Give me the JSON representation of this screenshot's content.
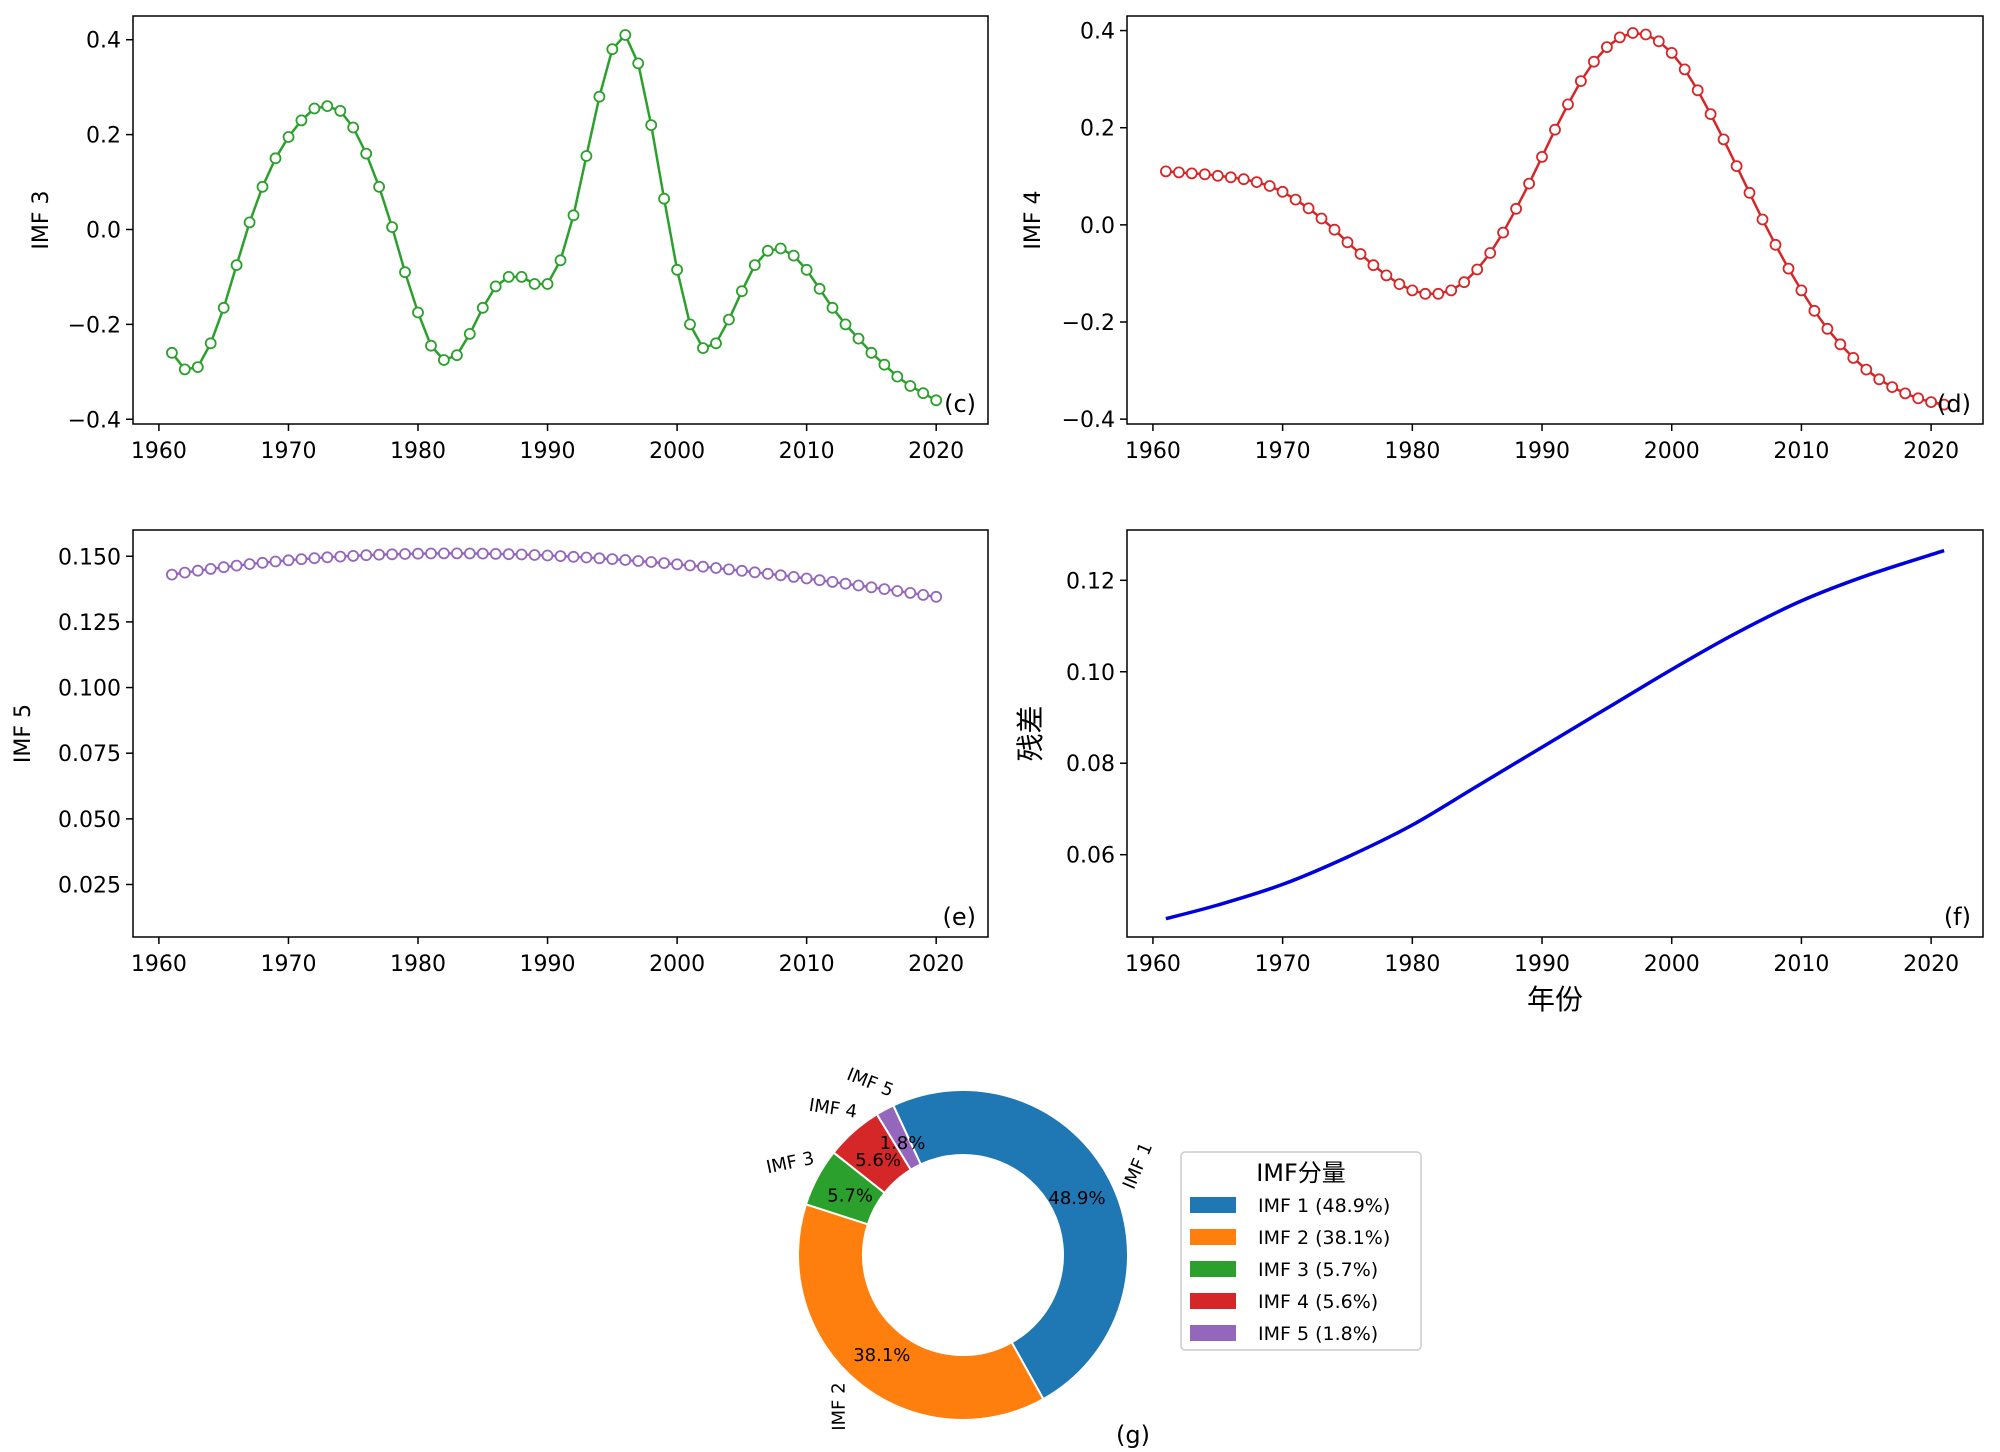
{
  "chart_data": [
    {
      "type": "line",
      "panel_label": "(c)",
      "ylabel": "IMF 3",
      "xlim": [
        1958,
        2024
      ],
      "ylim": [
        -0.41,
        0.45
      ],
      "xticks": [
        1960,
        1970,
        1980,
        1990,
        2000,
        2010,
        2020
      ],
      "xtick_labels": [
        "1960",
        "1970",
        "1980",
        "1990",
        "2000",
        "2010",
        "2020"
      ],
      "yticks": [
        -0.4,
        -0.2,
        0.0,
        0.2,
        0.4
      ],
      "ytick_labels": [
        "−0.4",
        "−0.2",
        "0.0",
        "0.2",
        "0.4"
      ],
      "color": "#2ca02c",
      "markers": true,
      "x_start": 1961,
      "y": [
        -0.26,
        -0.295,
        -0.29,
        -0.24,
        -0.165,
        -0.075,
        0.015,
        0.09,
        0.15,
        0.195,
        0.23,
        0.255,
        0.26,
        0.25,
        0.215,
        0.16,
        0.09,
        0.005,
        -0.09,
        -0.175,
        -0.245,
        -0.275,
        -0.265,
        -0.22,
        -0.165,
        -0.12,
        -0.1,
        -0.1,
        -0.115,
        -0.115,
        -0.065,
        0.03,
        0.155,
        0.28,
        0.38,
        0.41,
        0.35,
        0.22,
        0.065,
        -0.085,
        -0.2,
        -0.25,
        -0.24,
        -0.19,
        -0.13,
        -0.075,
        -0.045,
        -0.04,
        -0.055,
        -0.085,
        -0.125,
        -0.165,
        -0.2,
        -0.23,
        -0.26,
        -0.285,
        -0.31,
        -0.33,
        -0.345,
        -0.36
      ]
    },
    {
      "type": "line",
      "panel_label": "(d)",
      "ylabel": "IMF 4",
      "xlim": [
        1958,
        2024
      ],
      "ylim": [
        -0.41,
        0.43
      ],
      "xticks": [
        1960,
        1970,
        1980,
        1990,
        2000,
        2010,
        2020
      ],
      "xtick_labels": [
        "1960",
        "1970",
        "1980",
        "1990",
        "2000",
        "2010",
        "2020"
      ],
      "yticks": [
        -0.4,
        -0.2,
        0.0,
        0.2,
        0.4
      ],
      "ytick_labels": [
        "−0.4",
        "−0.2",
        "0.0",
        "0.2",
        "0.4"
      ],
      "color": "#d62728",
      "markers": true,
      "x_start": 1961,
      "y": [
        0.11,
        0.108,
        0.106,
        0.104,
        0.101,
        0.098,
        0.094,
        0.088,
        0.08,
        0.068,
        0.052,
        0.034,
        0.013,
        -0.01,
        -0.036,
        -0.06,
        -0.083,
        -0.104,
        -0.122,
        -0.135,
        -0.142,
        -0.142,
        -0.135,
        -0.118,
        -0.092,
        -0.058,
        -0.016,
        0.033,
        0.085,
        0.14,
        0.196,
        0.248,
        0.296,
        0.336,
        0.366,
        0.386,
        0.395,
        0.392,
        0.378,
        0.354,
        0.32,
        0.277,
        0.228,
        0.176,
        0.121,
        0.066,
        0.011,
        -0.041,
        -0.09,
        -0.135,
        -0.177,
        -0.214,
        -0.246,
        -0.274,
        -0.298,
        -0.318,
        -0.334,
        -0.347,
        -0.357,
        -0.365,
        -0.37
      ]
    },
    {
      "type": "line",
      "panel_label": "(e)",
      "ylabel": "IMF 5",
      "xlim": [
        1958,
        2024
      ],
      "ylim": [
        0.005,
        0.16
      ],
      "xticks": [
        1960,
        1970,
        1980,
        1990,
        2000,
        2010,
        2020
      ],
      "xtick_labels": [
        "1960",
        "1970",
        "1980",
        "1990",
        "2000",
        "2010",
        "2020"
      ],
      "yticks": [
        0.025,
        0.05,
        0.075,
        0.1,
        0.125,
        0.15
      ],
      "ytick_labels": [
        "0.025",
        "0.050",
        "0.075",
        "0.100",
        "0.125",
        "0.150"
      ],
      "color": "#9467bd",
      "markers": true,
      "x_start": 1961,
      "x_end": 2020,
      "cubic": [
        0.143,
        0.000791,
        -2.13e-05,
        9.26e-08
      ]
    },
    {
      "type": "line",
      "panel_label": "(f)",
      "ylabel": "残差",
      "xlabel": "年份",
      "xlim": [
        1958,
        2024
      ],
      "ylim": [
        0.042,
        0.131
      ],
      "xticks": [
        1960,
        1970,
        1980,
        1990,
        2000,
        2010,
        2020
      ],
      "xtick_labels": [
        "1960",
        "1970",
        "1980",
        "1990",
        "2000",
        "2010",
        "2020"
      ],
      "yticks": [
        0.06,
        0.08,
        0.1,
        0.12
      ],
      "ytick_labels": [
        "0.06",
        "0.08",
        "0.10",
        "0.12"
      ],
      "color": "#0000dd",
      "markers": false,
      "x": [
        1961,
        1965,
        1970,
        1975,
        1980,
        1985,
        1990,
        1995,
        2000,
        2005,
        2010,
        2015,
        2021
      ],
      "y": [
        0.046,
        0.049,
        0.0535,
        0.0595,
        0.0665,
        0.075,
        0.0835,
        0.092,
        0.1005,
        0.1085,
        0.1155,
        0.121,
        0.1265
      ]
    },
    {
      "type": "pie",
      "donut": true,
      "panel_label": "(g)",
      "labels": [
        "IMF 1",
        "IMF 2",
        "IMF 3",
        "IMF 4",
        "IMF 5"
      ],
      "values": [
        48.9,
        38.1,
        5.7,
        5.6,
        1.8
      ],
      "pct_labels": [
        "48.9%",
        "38.1%",
        "5.7%",
        "5.6%",
        "1.8%"
      ],
      "colors": [
        "#1f77b4",
        "#ff7f0e",
        "#2ca02c",
        "#d62728",
        "#9467bd"
      ],
      "start_angle": 115,
      "legend": {
        "title": "IMF分量",
        "entries": [
          "IMF 1 (48.9%)",
          "IMF 2 (38.1%)",
          "IMF 3 (5.7%)",
          "IMF 4 (5.6%)",
          "IMF 5 (1.8%)"
        ]
      }
    }
  ]
}
